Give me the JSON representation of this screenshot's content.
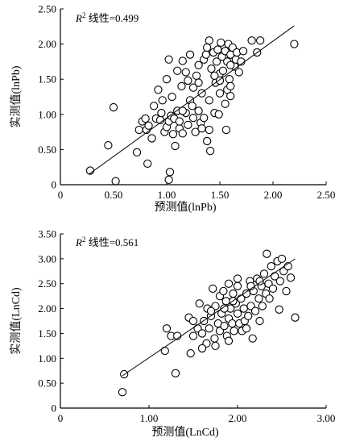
{
  "chart_data": [
    {
      "type": "scatter",
      "xlabel": "预测值(lnPb)",
      "ylabel": "实测值(lnPb)",
      "annotation": {
        "prefix": "R",
        "exponent": "2",
        "text": " 线性=0.499"
      },
      "xlim": [
        0,
        2.5
      ],
      "ylim": [
        0,
        2.5
      ],
      "x_ticks": [
        "0",
        "0.50",
        "1.00",
        "1.50",
        "2.00",
        "2.50"
      ],
      "y_ticks": [
        "0",
        "0.50",
        "1.00",
        "1.50",
        "2.00",
        "2.50"
      ],
      "fit_line": {
        "x": [
          0.27,
          2.2
        ],
        "y": [
          0.15,
          2.26
        ]
      },
      "points": [
        [
          0.28,
          0.2
        ],
        [
          0.45,
          0.56
        ],
        [
          0.5,
          1.1
        ],
        [
          0.52,
          0.05
        ],
        [
          0.72,
          0.46
        ],
        [
          0.74,
          0.78
        ],
        [
          0.77,
          0.9
        ],
        [
          0.8,
          0.94
        ],
        [
          0.81,
          0.78
        ],
        [
          0.83,
          0.84
        ],
        [
          0.86,
          0.66
        ],
        [
          0.88,
          1.12
        ],
        [
          0.9,
          0.94
        ],
        [
          0.92,
          1.35
        ],
        [
          0.94,
          0.92
        ],
        [
          0.96,
          1.2
        ],
        [
          0.98,
          0.75
        ],
        [
          1.0,
          0.82
        ],
        [
          1.0,
          1.5
        ],
        [
          1.02,
          0.9
        ],
        [
          1.02,
          1.78
        ],
        [
          1.03,
          0.18
        ],
        [
          1.04,
          0.98
        ],
        [
          1.05,
          1.25
        ],
        [
          1.06,
          0.72
        ],
        [
          1.07,
          0.94
        ],
        [
          1.08,
          0.55
        ],
        [
          1.1,
          1.05
        ],
        [
          1.1,
          1.62
        ],
        [
          1.12,
          0.8
        ],
        [
          1.12,
          0.9
        ],
        [
          1.14,
          1.4
        ],
        [
          1.15,
          0.73
        ],
        [
          1.15,
          1.76
        ],
        [
          1.18,
          1.02
        ],
        [
          1.2,
          0.85
        ],
        [
          1.2,
          1.48
        ],
        [
          1.22,
          1.2
        ],
        [
          1.22,
          1.85
        ],
        [
          1.24,
          1.12
        ],
        [
          1.25,
          0.95
        ],
        [
          1.27,
          0.75
        ],
        [
          1.28,
          1.55
        ],
        [
          1.3,
          1.05
        ],
        [
          1.3,
          1.7
        ],
        [
          1.32,
          0.88
        ],
        [
          1.33,
          1.3
        ],
        [
          1.35,
          1.78
        ],
        [
          1.35,
          0.95
        ],
        [
          1.37,
          1.85
        ],
        [
          1.38,
          0.62
        ],
        [
          1.38,
          1.95
        ],
        [
          1.4,
          0.78
        ],
        [
          1.4,
          1.2
        ],
        [
          1.4,
          2.05
        ],
        [
          1.41,
          0.48
        ],
        [
          1.42,
          1.65
        ],
        [
          1.44,
          1.88
        ],
        [
          1.45,
          1.02
        ],
        [
          1.46,
          1.45
        ],
        [
          1.47,
          1.75
        ],
        [
          1.48,
          1.92
        ],
        [
          1.49,
          1.0
        ],
        [
          1.5,
          1.3
        ],
        [
          1.5,
          1.58
        ],
        [
          1.51,
          2.02
        ],
        [
          1.52,
          1.82
        ],
        [
          1.53,
          1.62
        ],
        [
          1.55,
          1.15
        ],
        [
          1.55,
          1.9
        ],
        [
          1.56,
          0.78
        ],
        [
          1.57,
          1.35
        ],
        [
          1.57,
          1.75
        ],
        [
          1.58,
          2.0
        ],
        [
          1.59,
          1.5
        ],
        [
          1.6,
          1.26
        ],
        [
          1.6,
          1.85
        ],
        [
          1.62,
          1.95
        ],
        [
          1.64,
          1.68
        ],
        [
          1.65,
          1.78
        ],
        [
          1.66,
          1.88
        ],
        [
          1.68,
          1.6
        ],
        [
          1.7,
          1.75
        ],
        [
          1.72,
          1.9
        ],
        [
          1.8,
          2.05
        ],
        [
          1.85,
          1.88
        ],
        [
          1.88,
          2.05
        ],
        [
          2.2,
          2.0
        ],
        [
          1.45,
          1.55
        ],
        [
          1.25,
          1.38
        ],
        [
          1.15,
          1.05
        ],
        [
          0.95,
          1.02
        ],
        [
          1.02,
          0.07
        ],
        [
          0.82,
          0.3
        ],
        [
          1.33,
          0.8
        ],
        [
          1.6,
          1.4
        ],
        [
          1.5,
          1.48
        ],
        [
          1.3,
          1.45
        ],
        [
          1.18,
          1.6
        ],
        [
          1.6,
          1.7
        ]
      ]
    },
    {
      "type": "scatter",
      "xlabel": "预测值(LnCd)",
      "ylabel": "实测值(LnCd)",
      "annotation": {
        "prefix": "R",
        "exponent": "2",
        "text": " 线性=0.561"
      },
      "xlim": [
        0,
        3.0
      ],
      "ylim": [
        0,
        3.5
      ],
      "x_ticks": [
        "0",
        "1.00",
        "2.00",
        "3.00"
      ],
      "y_ticks": [
        "0",
        "0.50",
        "1.00",
        "1.50",
        "2.00",
        "2.50",
        "3.00",
        "3.50"
      ],
      "fit_line": {
        "x": [
          0.7,
          2.65
        ],
        "y": [
          0.65,
          3.0
        ]
      },
      "points": [
        [
          0.7,
          0.32
        ],
        [
          0.72,
          0.68
        ],
        [
          1.18,
          1.15
        ],
        [
          1.2,
          1.6
        ],
        [
          1.25,
          1.45
        ],
        [
          1.3,
          0.7
        ],
        [
          1.32,
          1.45
        ],
        [
          1.45,
          1.82
        ],
        [
          1.47,
          1.1
        ],
        [
          1.5,
          1.45
        ],
        [
          1.55,
          1.6
        ],
        [
          1.57,
          2.1
        ],
        [
          1.6,
          1.5
        ],
        [
          1.62,
          1.75
        ],
        [
          1.65,
          1.3
        ],
        [
          1.66,
          2.0
        ],
        [
          1.68,
          1.6
        ],
        [
          1.7,
          1.85
        ],
        [
          1.72,
          2.4
        ],
        [
          1.74,
          1.4
        ],
        [
          1.75,
          2.05
        ],
        [
          1.78,
          1.7
        ],
        [
          1.8,
          2.25
        ],
        [
          1.8,
          1.55
        ],
        [
          1.82,
          1.9
        ],
        [
          1.84,
          2.35
        ],
        [
          1.85,
          1.65
        ],
        [
          1.87,
          2.15
        ],
        [
          1.88,
          1.45
        ],
        [
          1.9,
          2.5
        ],
        [
          1.9,
          1.8
        ],
        [
          1.92,
          2.0
        ],
        [
          1.94,
          1.7
        ],
        [
          1.95,
          2.3
        ],
        [
          1.96,
          1.55
        ],
        [
          1.98,
          2.1
        ],
        [
          2.0,
          1.9
        ],
        [
          2.0,
          2.45
        ],
        [
          2.02,
          1.7
        ],
        [
          2.04,
          2.2
        ],
        [
          2.05,
          1.55
        ],
        [
          2.07,
          2.0
        ],
        [
          2.08,
          1.75
        ],
        [
          2.1,
          2.3
        ],
        [
          2.12,
          1.85
        ],
        [
          2.14,
          2.55
        ],
        [
          2.15,
          2.05
        ],
        [
          2.17,
          1.4
        ],
        [
          2.18,
          2.35
        ],
        [
          2.2,
          1.95
        ],
        [
          2.22,
          2.6
        ],
        [
          2.24,
          2.2
        ],
        [
          2.25,
          1.75
        ],
        [
          2.27,
          2.45
        ],
        [
          2.28,
          2.05
        ],
        [
          2.3,
          2.7
        ],
        [
          2.32,
          2.3
        ],
        [
          2.33,
          3.1
        ],
        [
          2.35,
          2.5
        ],
        [
          2.36,
          2.2
        ],
        [
          2.38,
          2.85
        ],
        [
          2.4,
          2.4
        ],
        [
          2.42,
          2.65
        ],
        [
          2.45,
          2.95
        ],
        [
          2.47,
          1.98
        ],
        [
          2.48,
          2.55
        ],
        [
          2.5,
          3.0
        ],
        [
          2.52,
          2.75
        ],
        [
          2.55,
          2.35
        ],
        [
          2.57,
          2.85
        ],
        [
          2.6,
          2.62
        ],
        [
          2.65,
          1.82
        ],
        [
          1.6,
          1.2
        ],
        [
          1.75,
          1.25
        ],
        [
          2.1,
          1.6
        ],
        [
          1.95,
          2.15
        ],
        [
          2.0,
          2.6
        ],
        [
          1.85,
          2.0
        ],
        [
          2.25,
          2.55
        ],
        [
          1.7,
          1.95
        ],
        [
          1.5,
          1.75
        ],
        [
          1.9,
          1.35
        ],
        [
          2.15,
          2.45
        ]
      ]
    }
  ]
}
